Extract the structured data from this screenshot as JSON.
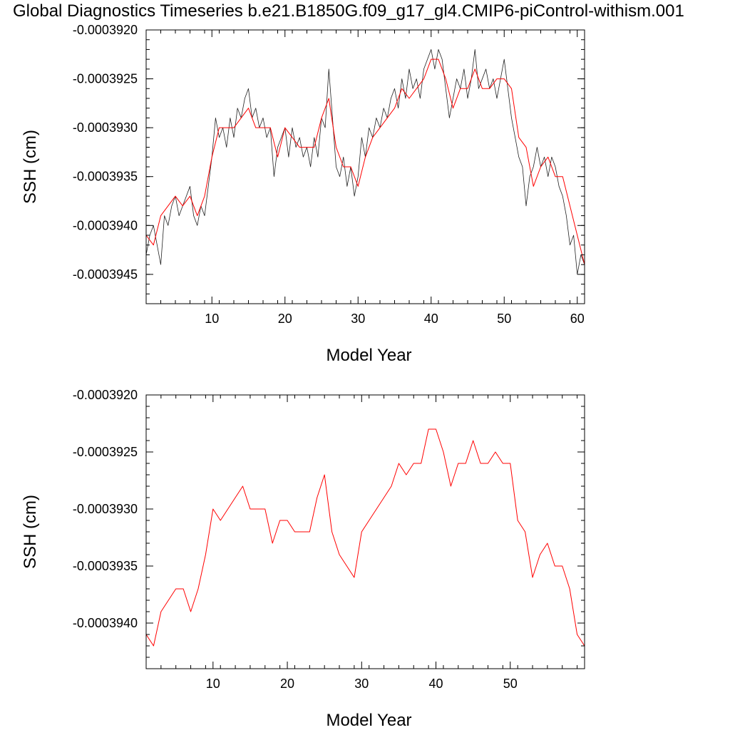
{
  "title": "Global Diagnostics Timeseries b.e21.B1850G.f09_g17_gl4.CMIP6-piControl-withism.001",
  "colors": {
    "monthly": "#222222",
    "annual": "#ff0000",
    "axis": "#000000"
  },
  "chart_data": [
    {
      "type": "line",
      "xlabel": "Model Year",
      "ylabel": "SSH (cm)",
      "xlim": [
        1,
        61
      ],
      "ylim": [
        -0.0003948,
        -0.000392
      ],
      "xticks": [
        10,
        20,
        30,
        40,
        50,
        60
      ],
      "yticks": [
        {
          "value": -0.000392,
          "label": "-0.0003920"
        },
        {
          "value": -0.0003925,
          "label": "-0.0003925"
        },
        {
          "value": -0.000393,
          "label": "-0.0003930"
        },
        {
          "value": -0.0003935,
          "label": "-0.0003935"
        },
        {
          "value": -0.000394,
          "label": "-0.0003940"
        },
        {
          "value": -0.0003945,
          "label": "-0.0003945"
        }
      ],
      "series": [
        {
          "kind": "monthly",
          "x": [
            1.0,
            1.5,
            2.0,
            2.5,
            3.0,
            3.5,
            4.0,
            4.5,
            5.0,
            5.5,
            6.0,
            6.5,
            7.0,
            7.5,
            8.0,
            8.5,
            9.0,
            9.5,
            10.0,
            10.5,
            11.0,
            11.5,
            12.0,
            12.5,
            13.0,
            13.5,
            14.0,
            14.5,
            15.0,
            15.5,
            16.0,
            16.5,
            17.0,
            17.5,
            18.0,
            18.5,
            19.0,
            19.5,
            20.0,
            20.5,
            21.0,
            21.5,
            22.0,
            22.5,
            23.0,
            23.5,
            24.0,
            24.5,
            25.0,
            25.5,
            26.0,
            26.5,
            27.0,
            27.5,
            28.0,
            28.5,
            29.0,
            29.5,
            30.0,
            30.5,
            31.0,
            31.5,
            32.0,
            32.5,
            33.0,
            33.5,
            34.0,
            34.5,
            35.0,
            35.5,
            36.0,
            36.5,
            37.0,
            37.5,
            38.0,
            38.5,
            39.0,
            39.5,
            40.0,
            40.5,
            41.0,
            41.5,
            42.0,
            42.5,
            43.0,
            43.5,
            44.0,
            44.5,
            45.0,
            45.5,
            46.0,
            46.5,
            47.0,
            47.5,
            48.0,
            48.5,
            49.0,
            49.5,
            50.0,
            50.5,
            51.0,
            51.5,
            52.0,
            52.5,
            53.0,
            53.5,
            54.0,
            54.5,
            55.0,
            55.5,
            56.0,
            56.5,
            57.0,
            57.5,
            58.0,
            58.5,
            59.0,
            59.5,
            60.0,
            60.5,
            61.0
          ],
          "values": [
            -0.0003943,
            -0.0003941,
            -0.000394,
            -0.0003942,
            -0.0003944,
            -0.0003939,
            -0.000394,
            -0.0003938,
            -0.0003937,
            -0.0003939,
            -0.0003938,
            -0.0003937,
            -0.0003936,
            -0.0003939,
            -0.000394,
            -0.0003938,
            -0.0003939,
            -0.0003936,
            -0.0003933,
            -0.0003929,
            -0.0003931,
            -0.000393,
            -0.0003932,
            -0.0003929,
            -0.0003931,
            -0.0003928,
            -0.0003929,
            -0.0003927,
            -0.0003926,
            -0.0003929,
            -0.0003928,
            -0.000393,
            -0.0003929,
            -0.0003931,
            -0.000393,
            -0.0003935,
            -0.0003932,
            -0.0003931,
            -0.000393,
            -0.0003933,
            -0.000393,
            -0.0003932,
            -0.0003931,
            -0.0003933,
            -0.0003932,
            -0.0003934,
            -0.0003931,
            -0.0003933,
            -0.0003929,
            -0.000393,
            -0.0003924,
            -0.0003929,
            -0.0003934,
            -0.0003935,
            -0.0003933,
            -0.0003936,
            -0.0003934,
            -0.0003937,
            -0.0003935,
            -0.0003931,
            -0.0003933,
            -0.000393,
            -0.0003931,
            -0.0003929,
            -0.000393,
            -0.0003928,
            -0.0003929,
            -0.0003927,
            -0.0003926,
            -0.0003928,
            -0.0003925,
            -0.0003927,
            -0.0003924,
            -0.0003926,
            -0.0003925,
            -0.0003927,
            -0.0003924,
            -0.0003923,
            -0.0003922,
            -0.0003924,
            -0.0003922,
            -0.0003923,
            -0.0003926,
            -0.0003929,
            -0.0003927,
            -0.0003925,
            -0.0003926,
            -0.0003924,
            -0.0003927,
            -0.0003925,
            -0.0003922,
            -0.0003926,
            -0.0003925,
            -0.0003924,
            -0.0003926,
            -0.0003925,
            -0.0003927,
            -0.0003925,
            -0.0003923,
            -0.0003926,
            -0.0003929,
            -0.0003931,
            -0.0003933,
            -0.0003934,
            -0.0003938,
            -0.0003935,
            -0.0003934,
            -0.0003932,
            -0.0003934,
            -0.0003933,
            -0.0003935,
            -0.0003933,
            -0.0003934,
            -0.0003936,
            -0.0003937,
            -0.0003939,
            -0.0003942,
            -0.0003941,
            -0.0003945,
            -0.0003943,
            -0.0003944
          ]
        },
        {
          "kind": "annual",
          "x": [
            1,
            2,
            3,
            4,
            5,
            6,
            7,
            8,
            9,
            10,
            11,
            12,
            13,
            14,
            15,
            16,
            17,
            18,
            19,
            20,
            21,
            22,
            23,
            24,
            25,
            26,
            27,
            28,
            29,
            30,
            31,
            32,
            33,
            34,
            35,
            36,
            37,
            38,
            39,
            40,
            41,
            42,
            43,
            44,
            45,
            46,
            47,
            48,
            49,
            50,
            51,
            52,
            53,
            54,
            55,
            56,
            57,
            58,
            59,
            60,
            61
          ],
          "values": [
            -0.0003941,
            -0.0003942,
            -0.0003939,
            -0.0003938,
            -0.0003937,
            -0.0003938,
            -0.0003937,
            -0.0003939,
            -0.0003937,
            -0.0003933,
            -0.000393,
            -0.000393,
            -0.000393,
            -0.0003929,
            -0.0003928,
            -0.000393,
            -0.000393,
            -0.000393,
            -0.0003933,
            -0.000393,
            -0.0003931,
            -0.0003932,
            -0.0003932,
            -0.0003932,
            -0.0003929,
            -0.0003927,
            -0.0003932,
            -0.0003934,
            -0.0003934,
            -0.0003936,
            -0.0003933,
            -0.0003931,
            -0.000393,
            -0.0003929,
            -0.0003928,
            -0.0003926,
            -0.0003927,
            -0.0003926,
            -0.0003925,
            -0.0003923,
            -0.0003923,
            -0.0003925,
            -0.0003928,
            -0.0003926,
            -0.0003926,
            -0.0003924,
            -0.0003926,
            -0.0003926,
            -0.0003925,
            -0.0003925,
            -0.0003926,
            -0.0003931,
            -0.0003932,
            -0.0003936,
            -0.0003934,
            -0.0003933,
            -0.0003935,
            -0.0003935,
            -0.0003938,
            -0.0003941,
            -0.0003944
          ]
        }
      ]
    },
    {
      "type": "line",
      "xlabel": "Model Year",
      "ylabel": "SSH (cm)",
      "xlim": [
        1,
        60
      ],
      "ylim": [
        -0.0003944,
        -0.000392
      ],
      "xticks": [
        10,
        20,
        30,
        40,
        50
      ],
      "yticks": [
        {
          "value": -0.000392,
          "label": "-0.0003920"
        },
        {
          "value": -0.0003925,
          "label": "-0.0003925"
        },
        {
          "value": -0.000393,
          "label": "-0.0003930"
        },
        {
          "value": -0.0003935,
          "label": "-0.0003935"
        },
        {
          "value": -0.000394,
          "label": "-0.0003940"
        }
      ],
      "series": [
        {
          "kind": "annual",
          "x": [
            1,
            2,
            3,
            4,
            5,
            6,
            7,
            8,
            9,
            10,
            11,
            12,
            13,
            14,
            15,
            16,
            17,
            18,
            19,
            20,
            21,
            22,
            23,
            24,
            25,
            26,
            27,
            28,
            29,
            30,
            31,
            32,
            33,
            34,
            35,
            36,
            37,
            38,
            39,
            40,
            41,
            42,
            43,
            44,
            45,
            46,
            47,
            48,
            49,
            50,
            51,
            52,
            53,
            54,
            55,
            56,
            57,
            58,
            59,
            60
          ],
          "values": [
            -0.0003941,
            -0.0003942,
            -0.0003939,
            -0.0003938,
            -0.0003937,
            -0.0003937,
            -0.0003939,
            -0.0003937,
            -0.0003934,
            -0.000393,
            -0.0003931,
            -0.000393,
            -0.0003929,
            -0.0003928,
            -0.000393,
            -0.000393,
            -0.000393,
            -0.0003933,
            -0.0003931,
            -0.0003931,
            -0.0003932,
            -0.0003932,
            -0.0003932,
            -0.0003929,
            -0.0003927,
            -0.0003932,
            -0.0003934,
            -0.0003935,
            -0.0003936,
            -0.0003932,
            -0.0003931,
            -0.000393,
            -0.0003929,
            -0.0003928,
            -0.0003926,
            -0.0003927,
            -0.0003926,
            -0.0003926,
            -0.0003923,
            -0.0003923,
            -0.0003925,
            -0.0003928,
            -0.0003926,
            -0.0003926,
            -0.0003924,
            -0.0003926,
            -0.0003926,
            -0.0003925,
            -0.0003926,
            -0.0003926,
            -0.0003931,
            -0.0003932,
            -0.0003936,
            -0.0003934,
            -0.0003933,
            -0.0003935,
            -0.0003935,
            -0.0003937,
            -0.0003941,
            -0.0003942
          ]
        }
      ]
    }
  ]
}
